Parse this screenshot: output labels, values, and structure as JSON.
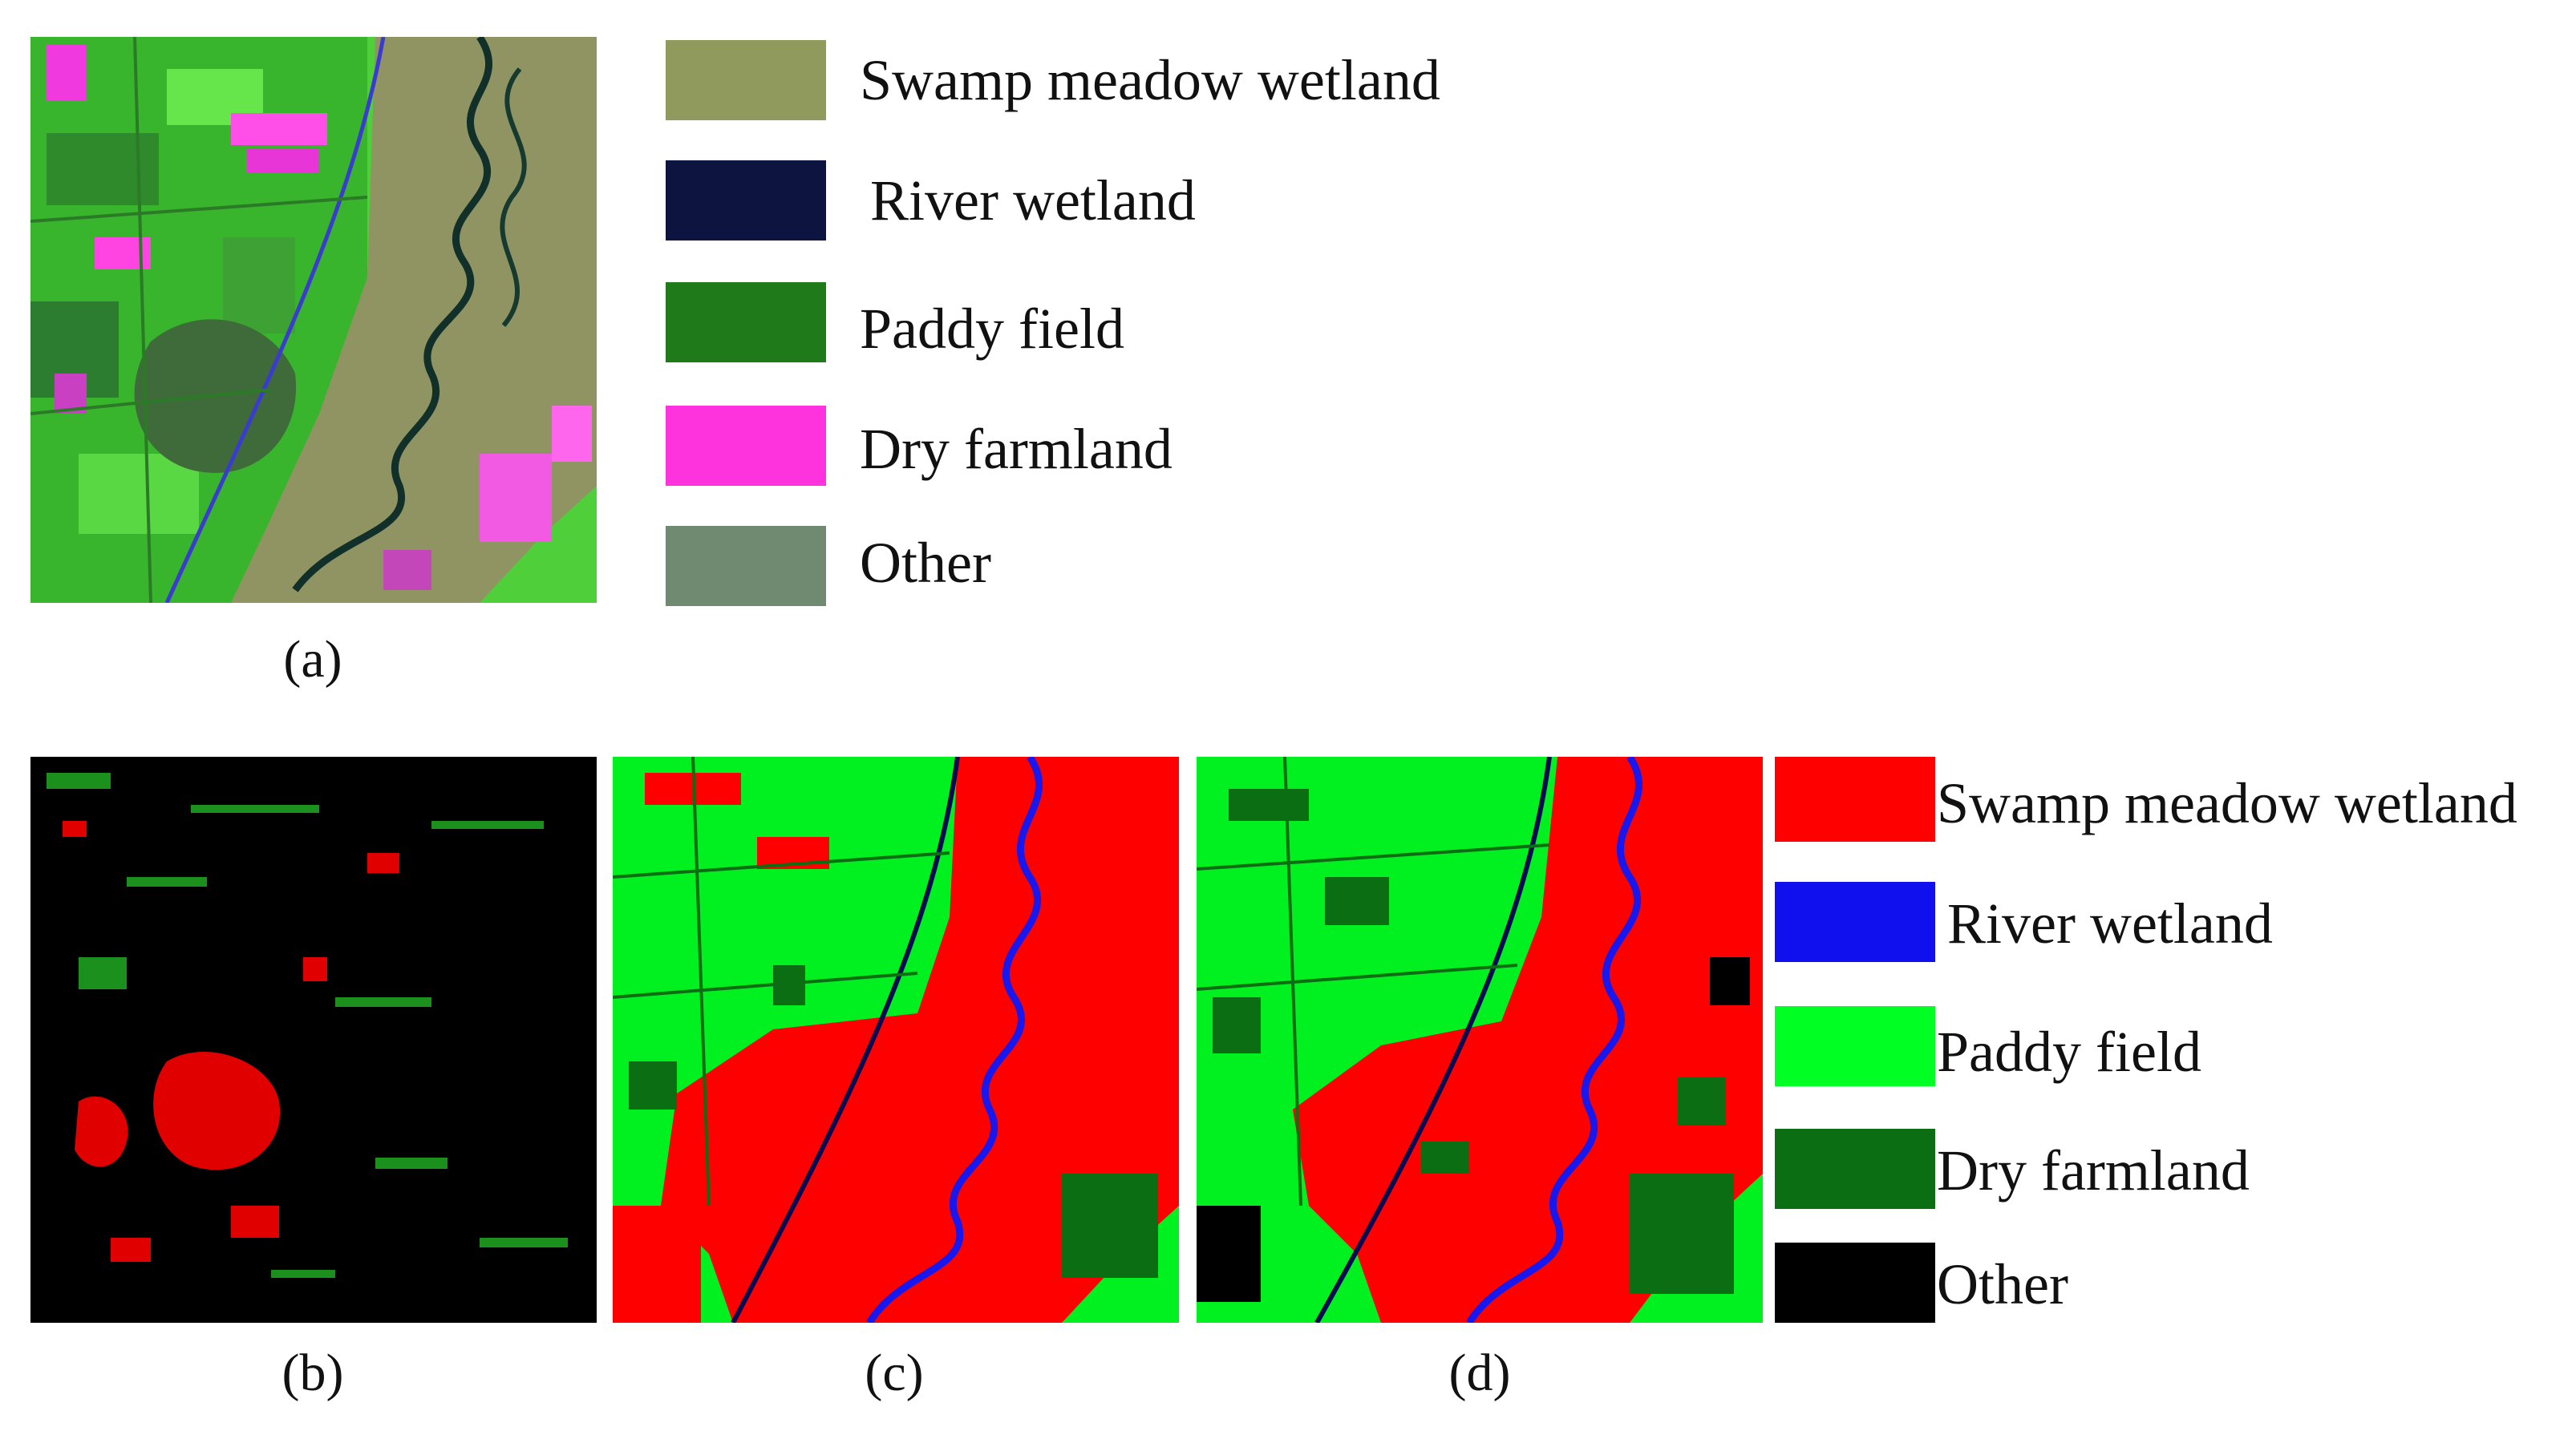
{
  "panels": [
    {
      "id": "a",
      "caption": "(a)"
    },
    {
      "id": "b",
      "caption": "(b)"
    },
    {
      "id": "c",
      "caption": "(c)"
    },
    {
      "id": "d",
      "caption": "(d)"
    }
  ],
  "legend_top": {
    "items": [
      {
        "label": "Swamp meadow wetland",
        "color": "#8f9a5c"
      },
      {
        "label": "River wetland",
        "color": "#0d1440"
      },
      {
        "label": "Paddy field",
        "color": "#1f7a1a"
      },
      {
        "label": "Dry farmland",
        "color": "#ff33dd"
      },
      {
        "label": "Other",
        "color": "#6f8a70"
      }
    ]
  },
  "legend_bottom": {
    "items": [
      {
        "label": "Swamp meadow wetland",
        "color": "#ff0000"
      },
      {
        "label": "River wetland",
        "color": "#1010ee"
      },
      {
        "label": "Paddy field",
        "color": "#00ff22"
      },
      {
        "label": "Dry farmland",
        "color": "#0b6e12"
      },
      {
        "label": "Other",
        "color": "#000000"
      }
    ]
  }
}
